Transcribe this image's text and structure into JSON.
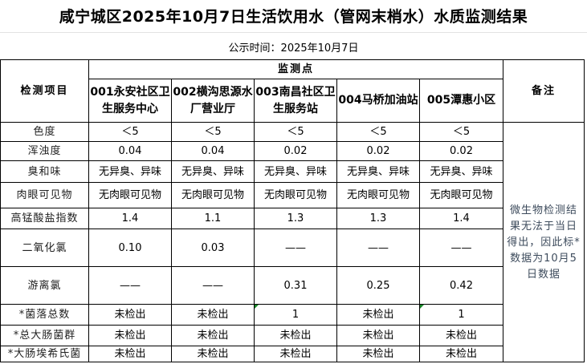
{
  "title": "咸宁城区2025年10月7日生活饮用水（管网末梢水）水质监测结果",
  "publish": "公示时间：2025年10月7日",
  "table": {
    "item_header": "检测项目",
    "group_header": "监测点",
    "remark_header": "备注",
    "sites": [
      "001永安社区卫生服务中心",
      "002横沟思源水厂营业厅",
      "003南昌社区卫生服务站",
      "004马桥加油站",
      "005潭惠小区"
    ],
    "rows": [
      {
        "item": "色度",
        "values": [
          "＜5",
          "＜5",
          "＜5",
          "＜5",
          "＜5"
        ]
      },
      {
        "item": "浑浊度",
        "values": [
          "0.04",
          "0.04",
          "0.02",
          "0.02",
          "0.02"
        ]
      },
      {
        "item": "臭和味",
        "values": [
          "无异臭、异味",
          "无异臭、异味",
          "无异臭、异味",
          "无异臭、异味",
          "无异臭、异味"
        ]
      },
      {
        "item": "肉眼可见物",
        "values": [
          "无肉眼可见物",
          "无肉眼可见物",
          "无肉眼可见物",
          "无肉眼可见物",
          "无肉眼可见物"
        ]
      },
      {
        "item": "高锰酸盐指数",
        "values": [
          "1.4",
          "1.1",
          "1.3",
          "1.3",
          "1.4"
        ]
      },
      {
        "item": "二氧化氯",
        "values": [
          "0.10",
          "0.03",
          "——",
          "——",
          "——"
        ]
      },
      {
        "item": "游离氯",
        "values": [
          "——",
          "——",
          "0.31",
          "0.25",
          "0.42"
        ]
      },
      {
        "item": "*菌落总数",
        "values": [
          "未检出",
          "未检出",
          "1",
          "未检出",
          "1"
        ]
      },
      {
        "item": "*总大肠菌群",
        "values": [
          "未检出",
          "未检出",
          "未检出",
          "未检出",
          "未检出"
        ]
      },
      {
        "item": "*大肠埃希氏菌",
        "values": [
          "未检出",
          "未检出",
          "未检出",
          "未检出",
          "未检出"
        ]
      }
    ],
    "remark": "微生物检测结果无法于当日得出，因此标*数据为10月5日数据"
  },
  "colors": {
    "remark_text": "#3d4b5c",
    "cell_marker": "#1a8a2a"
  }
}
